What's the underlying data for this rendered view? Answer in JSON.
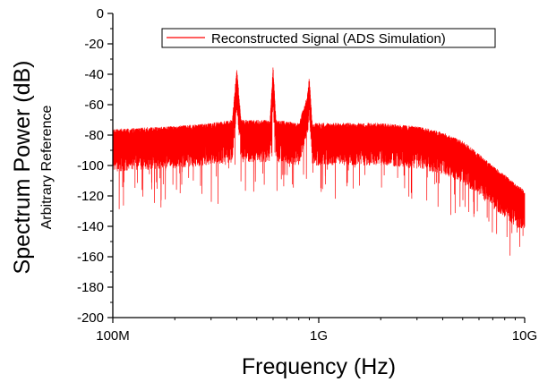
{
  "chart_data": {
    "type": "line",
    "title": "",
    "xlabel": "Frequency (Hz)",
    "ylabel": "Spectrum Power (dB)",
    "ylabel_secondary": "Arbitrary Reference",
    "x_scale": "log",
    "xlim": [
      100000000,
      10000000000
    ],
    "ylim": [
      -200,
      0
    ],
    "grid": false,
    "legend_position": "top-right",
    "x_ticks": [
      {
        "value": 100000000,
        "label": "100M"
      },
      {
        "value": 1000000000,
        "label": "1G"
      },
      {
        "value": 10000000000,
        "label": "10G"
      }
    ],
    "y_ticks": [
      {
        "value": 0,
        "label": "0"
      },
      {
        "value": -20,
        "label": "-20"
      },
      {
        "value": -40,
        "label": "-40"
      },
      {
        "value": -60,
        "label": "-60"
      },
      {
        "value": -80,
        "label": "-80"
      },
      {
        "value": -100,
        "label": "-100"
      },
      {
        "value": -120,
        "label": "-120"
      },
      {
        "value": -140,
        "label": "-140"
      },
      {
        "value": -160,
        "label": "-160"
      },
      {
        "value": -180,
        "label": "-180"
      },
      {
        "value": -200,
        "label": "-200"
      }
    ],
    "series": [
      {
        "name": "Reconstructed Signal (ADS Simulation)",
        "color": "#ff0000",
        "x": [
          100000000,
          200000000,
          300000000,
          380000000,
          400000000,
          420000000,
          500000000,
          580000000,
          600000000,
          620000000,
          800000000,
          880000000,
          900000000,
          930000000,
          1000000000,
          2000000000,
          3000000000,
          4000000000,
          5000000000,
          6000000000,
          7000000000,
          8000000000,
          9000000000,
          10000000000
        ],
        "y": [
          -82,
          -80,
          -78,
          -76,
          -42,
          -76,
          -76,
          -76,
          -40,
          -76,
          -78,
          -60,
          -47,
          -78,
          -78,
          -78,
          -80,
          -84,
          -90,
          -98,
          -106,
          -112,
          -118,
          -122
        ]
      }
    ]
  }
}
